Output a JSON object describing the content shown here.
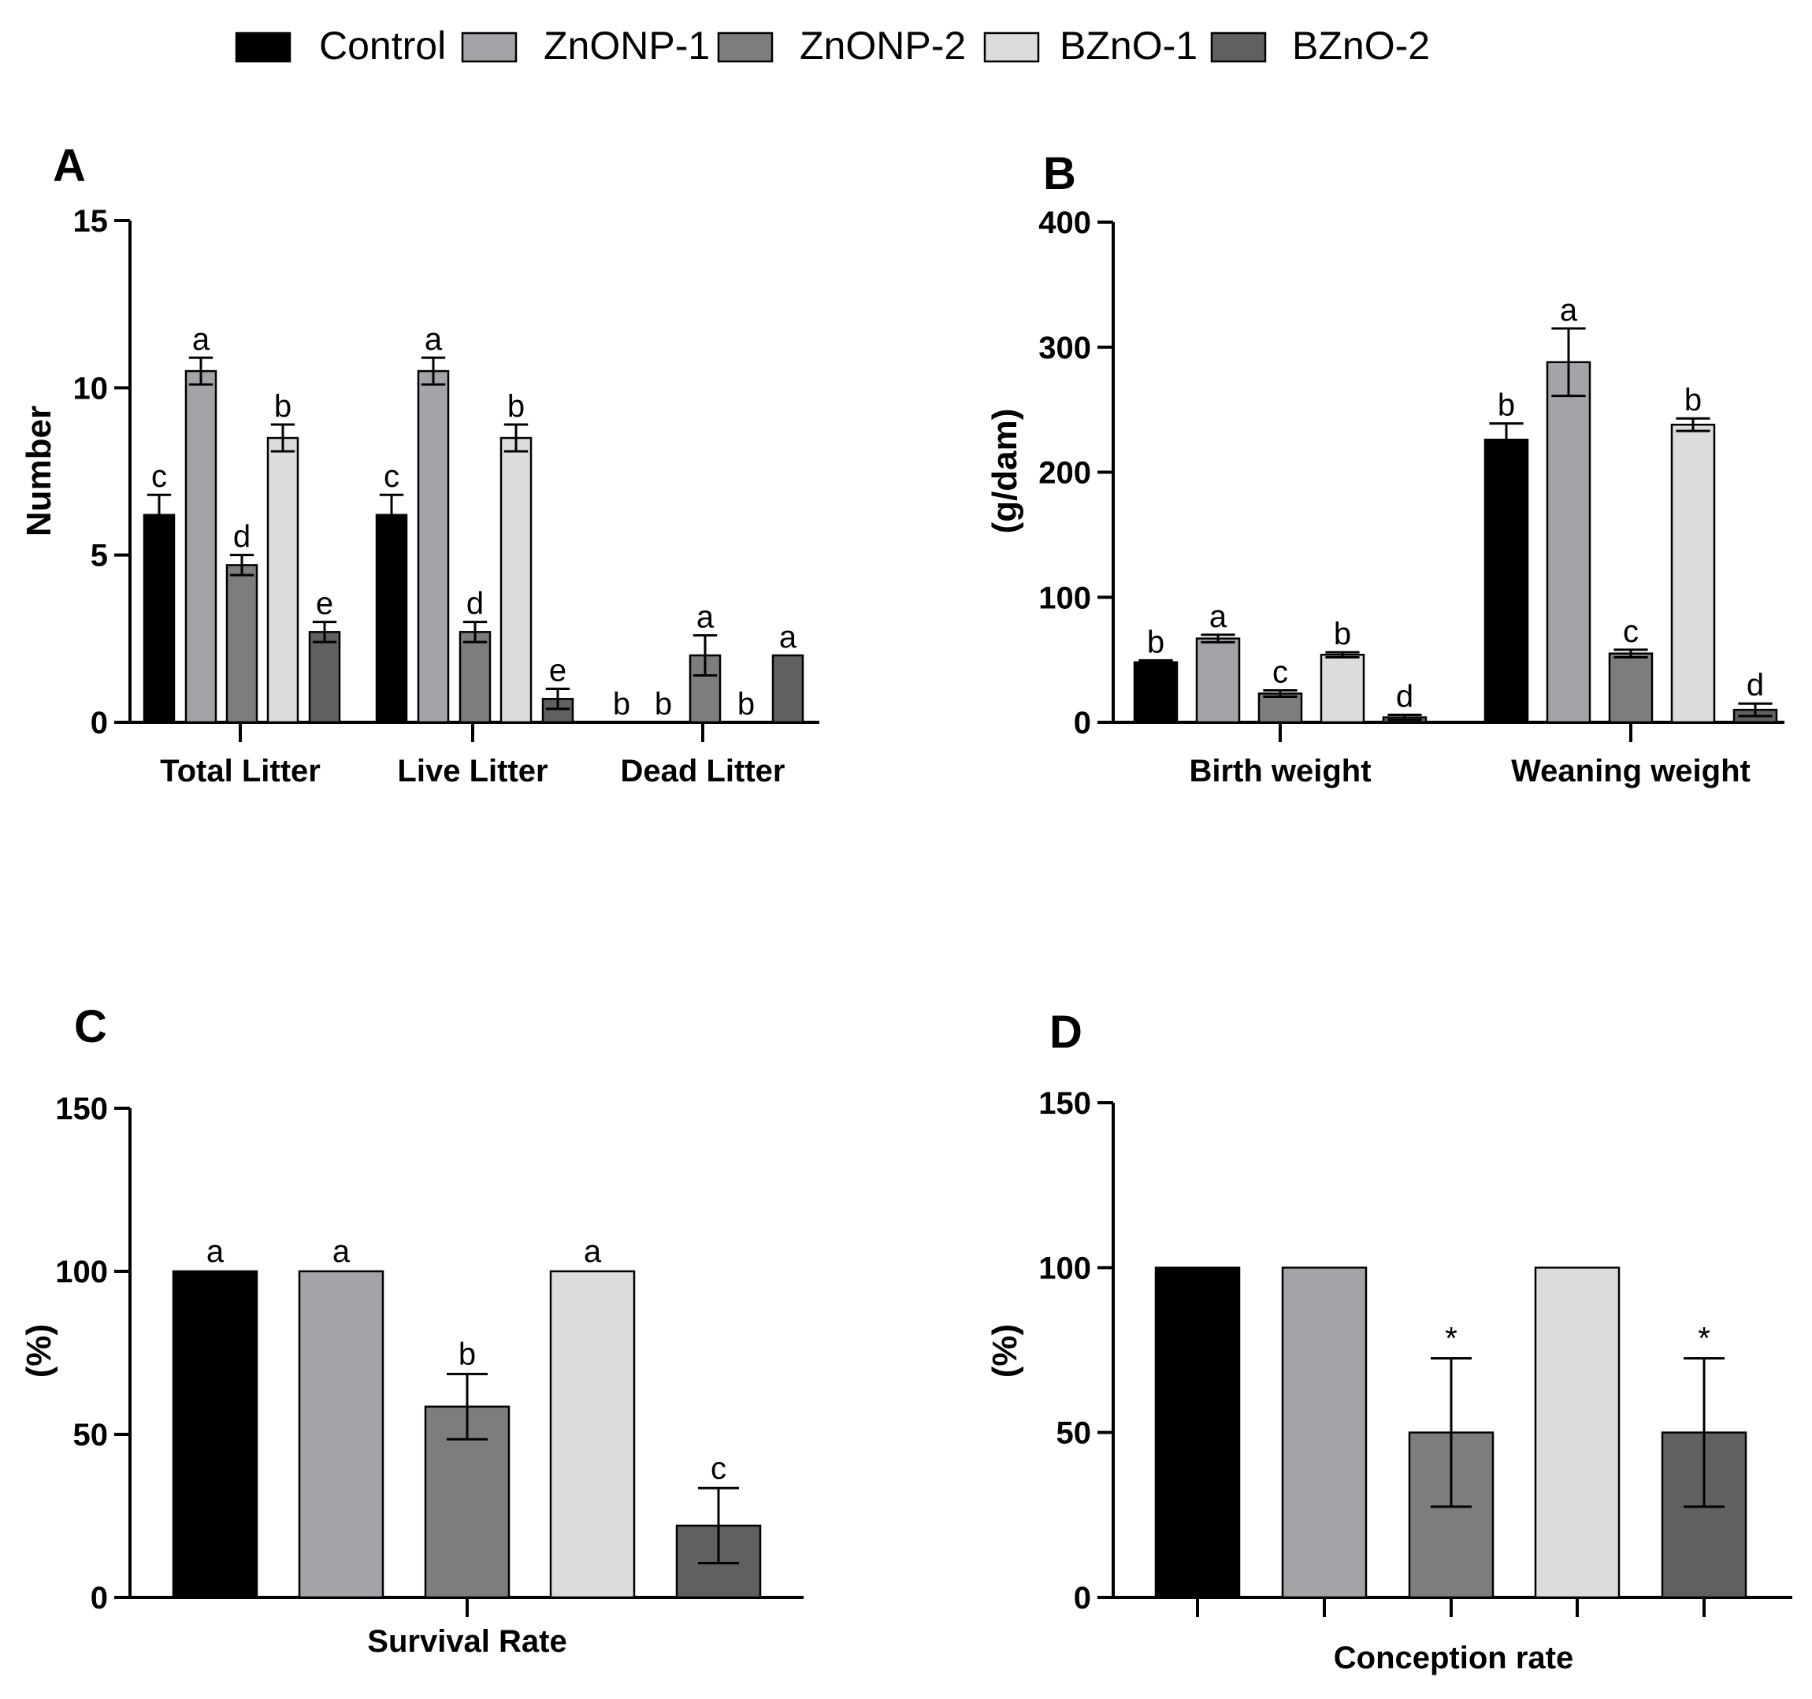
{
  "legend": [
    {
      "name": "Control",
      "color": "#000000"
    },
    {
      "name": "ZnONP-1",
      "color": "#a3a3a8"
    },
    {
      "name": "ZnONP-2",
      "color": "#7d7d7d"
    },
    {
      "name": "BZnO-1",
      "color": "#dcdcdc"
    },
    {
      "name": "BZnO-2",
      "color": "#606060"
    }
  ],
  "chart_data": [
    {
      "panel": "A",
      "type": "bar",
      "ylabel": "Number",
      "ylim": [
        0,
        15
      ],
      "yticks": [
        0,
        5,
        10,
        15
      ],
      "categories": [
        "Total Litter",
        "Live Litter",
        "Dead Litter"
      ],
      "series": [
        {
          "name": "Control",
          "values": [
            6.2,
            6.2,
            0
          ],
          "errors": [
            0.6,
            0.6,
            0
          ],
          "labels": [
            "c",
            "c",
            "b"
          ]
        },
        {
          "name": "ZnONP-1",
          "values": [
            10.5,
            10.5,
            0
          ],
          "errors": [
            0.4,
            0.4,
            0
          ],
          "labels": [
            "a",
            "a",
            "b"
          ]
        },
        {
          "name": "ZnONP-2",
          "values": [
            4.7,
            2.7,
            2.0
          ],
          "errors": [
            0.3,
            0.3,
            0.6
          ],
          "labels": [
            "d",
            "d",
            "a"
          ]
        },
        {
          "name": "BZnO-1",
          "values": [
            8.5,
            8.5,
            0
          ],
          "errors": [
            0.4,
            0.4,
            0
          ],
          "labels": [
            "b",
            "b",
            "b"
          ]
        },
        {
          "name": "BZnO-2",
          "values": [
            2.7,
            0.7,
            2.0
          ],
          "errors": [
            0.3,
            0.3,
            0
          ],
          "labels": [
            "e",
            "e",
            "a"
          ]
        }
      ]
    },
    {
      "panel": "B",
      "type": "bar",
      "ylabel": "(g/dam)",
      "ylim": [
        0,
        400
      ],
      "yticks": [
        0,
        100,
        200,
        300,
        400
      ],
      "categories": [
        "Birth weight",
        "Weaning weight"
      ],
      "series": [
        {
          "name": "Control",
          "values": [
            48,
            226
          ],
          "errors": [
            1.5,
            13
          ],
          "labels": [
            "b",
            "b"
          ]
        },
        {
          "name": "ZnONP-1",
          "values": [
            67,
            288
          ],
          "errors": [
            3,
            27
          ],
          "labels": [
            "a",
            "a"
          ]
        },
        {
          "name": "ZnONP-2",
          "values": [
            23,
            55
          ],
          "errors": [
            2.5,
            3
          ],
          "labels": [
            "c",
            "c"
          ]
        },
        {
          "name": "BZnO-1",
          "values": [
            54,
            238
          ],
          "errors": [
            2,
            5
          ],
          "labels": [
            "b",
            "b"
          ]
        },
        {
          "name": "BZnO-2",
          "values": [
            4,
            10
          ],
          "errors": [
            2,
            5
          ],
          "labels": [
            "d",
            "d"
          ]
        }
      ]
    },
    {
      "panel": "C",
      "type": "bar",
      "ylabel": "(%)",
      "ylim": [
        0,
        150
      ],
      "yticks": [
        0,
        50,
        100,
        150
      ],
      "categories": [
        "Survival Rate"
      ],
      "series": [
        {
          "name": "Control",
          "values": [
            100
          ],
          "errors": [
            0
          ],
          "labels": [
            "a"
          ]
        },
        {
          "name": "ZnONP-1",
          "values": [
            100
          ],
          "errors": [
            0
          ],
          "labels": [
            "a"
          ]
        },
        {
          "name": "ZnONP-2",
          "values": [
            58.5
          ],
          "errors": [
            10
          ],
          "labels": [
            "b"
          ]
        },
        {
          "name": "BZnO-1",
          "values": [
            100
          ],
          "errors": [
            0
          ],
          "labels": [
            "a"
          ]
        },
        {
          "name": "BZnO-2",
          "values": [
            22
          ],
          "errors": [
            11.5
          ],
          "labels": [
            "c"
          ]
        }
      ]
    },
    {
      "panel": "D",
      "type": "bar",
      "ylabel": "(%)",
      "ylim": [
        0,
        150
      ],
      "yticks": [
        0,
        50,
        100,
        150
      ],
      "categories": [
        "Conception rate"
      ],
      "series": [
        {
          "name": "Control",
          "values": [
            100
          ],
          "errors": [
            0
          ],
          "labels": [
            ""
          ]
        },
        {
          "name": "ZnONP-1",
          "values": [
            100
          ],
          "errors": [
            0
          ],
          "labels": [
            ""
          ]
        },
        {
          "name": "ZnONP-2",
          "values": [
            50
          ],
          "errors": [
            22.5
          ],
          "labels": [
            "*"
          ]
        },
        {
          "name": "BZnO-1",
          "values": [
            100
          ],
          "errors": [
            0
          ],
          "labels": [
            ""
          ]
        },
        {
          "name": "BZnO-2",
          "values": [
            50
          ],
          "errors": [
            22.5
          ],
          "labels": [
            "*"
          ]
        }
      ]
    }
  ]
}
